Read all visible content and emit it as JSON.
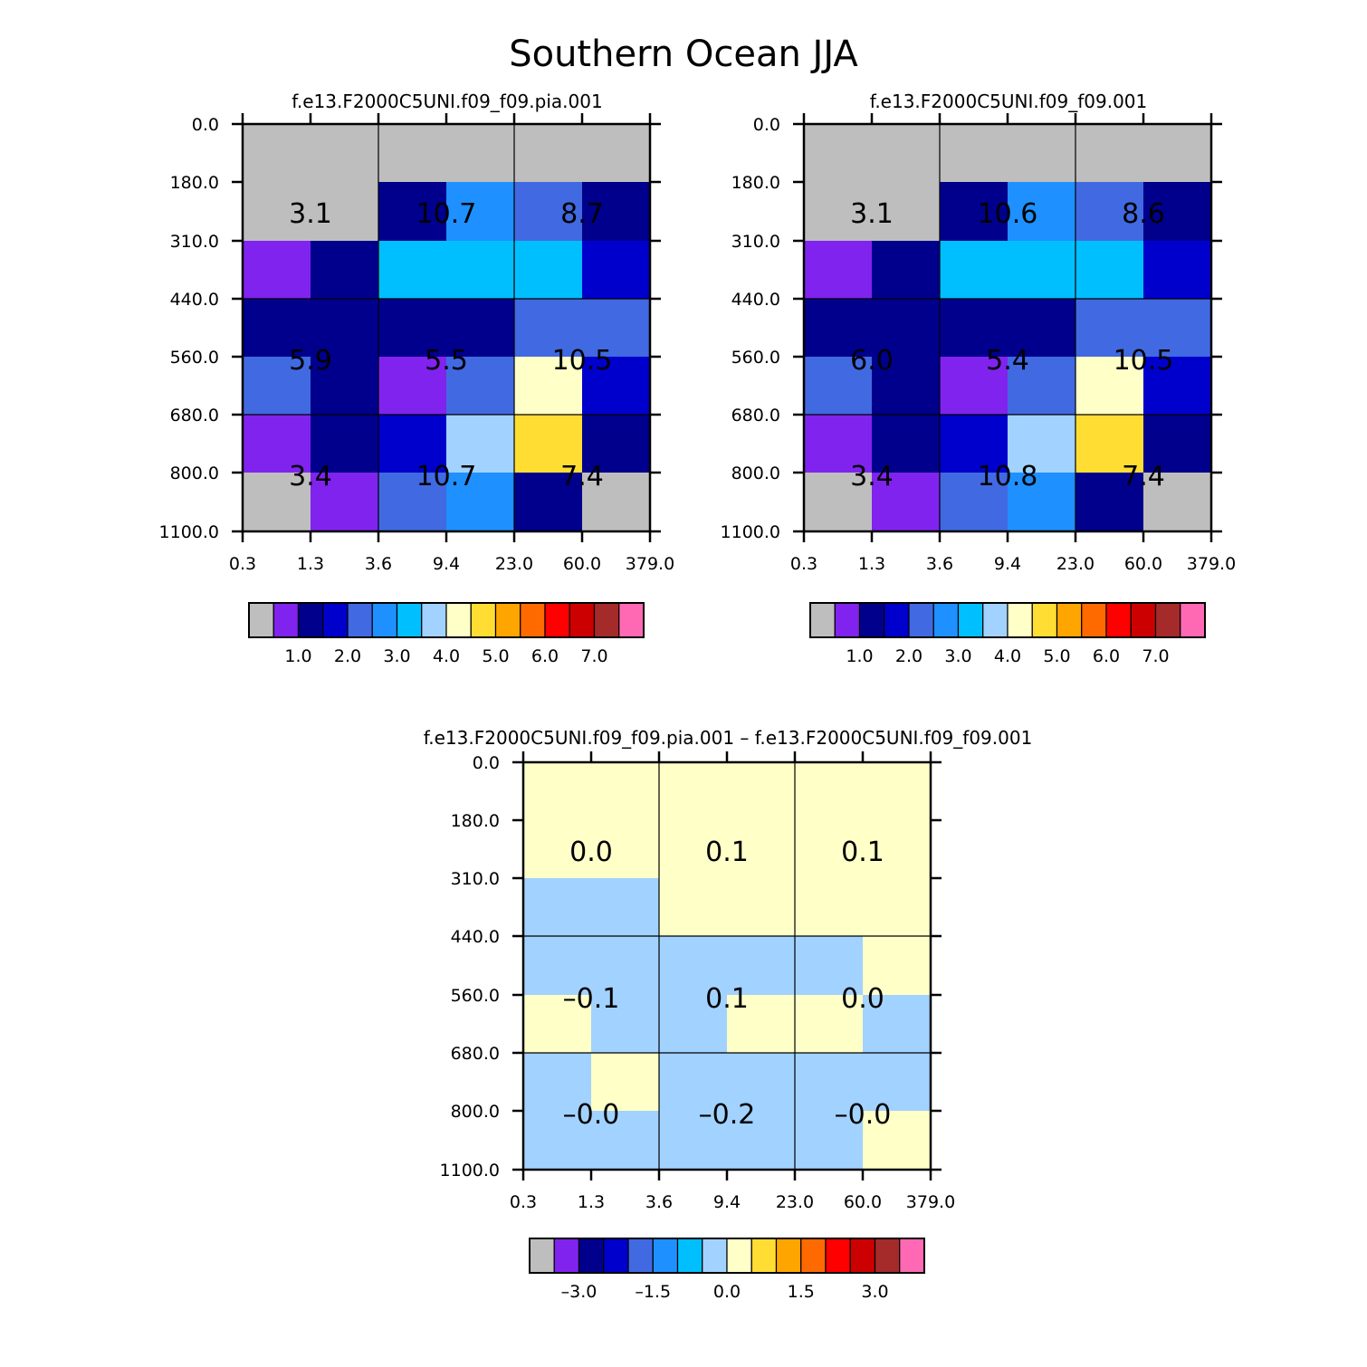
{
  "figure_title": "Southern Ocean JJA",
  "colors": {
    "palette": [
      "#bebebe",
      "#8023ee",
      "#00008c",
      "#0000cd",
      "#4169e1",
      "#1e90ff",
      "#00bfff",
      "#a2d2ff",
      "#ffffc8",
      "#ffdd33",
      "#ffa500",
      "#ff6a00",
      "#ff0000",
      "#cc0000",
      "#a52a2a",
      "#ff69b4"
    ]
  },
  "chart_data": [
    {
      "type": "heatmap",
      "title": "f.e13.F2000C5UNI.f09_f09.pia.001",
      "x_tick_labels": [
        "0.3",
        "1.3",
        "3.6",
        "9.4",
        "23.0",
        "60.0",
        "379.0"
      ],
      "y_tick_labels": [
        "0.0",
        "180.0",
        "310.0",
        "440.0",
        "560.0",
        "680.0",
        "800.0",
        "1100.0"
      ],
      "cell_color_index": [
        [
          0,
          0,
          0,
          0,
          0,
          0
        ],
        [
          0,
          0,
          2,
          5,
          4,
          2
        ],
        [
          1,
          2,
          6,
          6,
          6,
          3
        ],
        [
          2,
          2,
          2,
          2,
          4,
          4
        ],
        [
          4,
          2,
          1,
          4,
          8,
          3
        ],
        [
          1,
          2,
          3,
          7,
          9,
          2
        ],
        [
          0,
          1,
          4,
          5,
          2,
          0
        ]
      ],
      "block_labels": [
        [
          "3.1",
          "10.7",
          "8.7"
        ],
        [
          "5.9",
          "5.5",
          "10.5"
        ],
        [
          "3.4",
          "10.7",
          "7.4"
        ]
      ],
      "colorbar_tick_labels": [
        "1.0",
        "2.0",
        "3.0",
        "4.0",
        "5.0",
        "6.0",
        "7.0"
      ]
    },
    {
      "type": "heatmap",
      "title": "f.e13.F2000C5UNI.f09_f09.001",
      "x_tick_labels": [
        "0.3",
        "1.3",
        "3.6",
        "9.4",
        "23.0",
        "60.0",
        "379.0"
      ],
      "y_tick_labels": [
        "0.0",
        "180.0",
        "310.0",
        "440.0",
        "560.0",
        "680.0",
        "800.0",
        "1100.0"
      ],
      "cell_color_index": [
        [
          0,
          0,
          0,
          0,
          0,
          0
        ],
        [
          0,
          0,
          2,
          5,
          4,
          2
        ],
        [
          1,
          2,
          6,
          6,
          6,
          3
        ],
        [
          2,
          2,
          2,
          2,
          4,
          4
        ],
        [
          4,
          2,
          1,
          4,
          8,
          3
        ],
        [
          1,
          2,
          3,
          7,
          9,
          2
        ],
        [
          0,
          1,
          4,
          5,
          2,
          0
        ]
      ],
      "block_labels": [
        [
          "3.1",
          "10.6",
          "8.6"
        ],
        [
          "6.0",
          "5.4",
          "10.5"
        ],
        [
          "3.4",
          "10.8",
          "7.4"
        ]
      ],
      "colorbar_tick_labels": [
        "1.0",
        "2.0",
        "3.0",
        "4.0",
        "5.0",
        "6.0",
        "7.0"
      ]
    },
    {
      "type": "heatmap",
      "title": "f.e13.F2000C5UNI.f09_f09.pia.001 – f.e13.F2000C5UNI.f09_f09.001",
      "x_tick_labels": [
        "0.3",
        "1.3",
        "3.6",
        "9.4",
        "23.0",
        "60.0",
        "379.0"
      ],
      "y_tick_labels": [
        "0.0",
        "180.0",
        "310.0",
        "440.0",
        "560.0",
        "680.0",
        "800.0",
        "1100.0"
      ],
      "cell_color_index": [
        [
          8,
          8,
          8,
          8,
          8,
          8
        ],
        [
          8,
          8,
          8,
          8,
          8,
          8
        ],
        [
          7,
          7,
          8,
          8,
          8,
          8
        ],
        [
          7,
          7,
          7,
          7,
          7,
          8
        ],
        [
          8,
          7,
          7,
          8,
          8,
          7
        ],
        [
          7,
          8,
          7,
          7,
          7,
          7
        ],
        [
          7,
          7,
          7,
          7,
          7,
          8
        ]
      ],
      "block_labels": [
        [
          "0.0",
          "0.1",
          "0.1"
        ],
        [
          "–0.1",
          "0.1",
          "0.0"
        ],
        [
          "–0.0",
          "–0.2",
          "–0.0"
        ]
      ],
      "colorbar_tick_labels": [
        "–3.0",
        "–1.5",
        "0.0",
        "1.5",
        "3.0"
      ]
    }
  ]
}
